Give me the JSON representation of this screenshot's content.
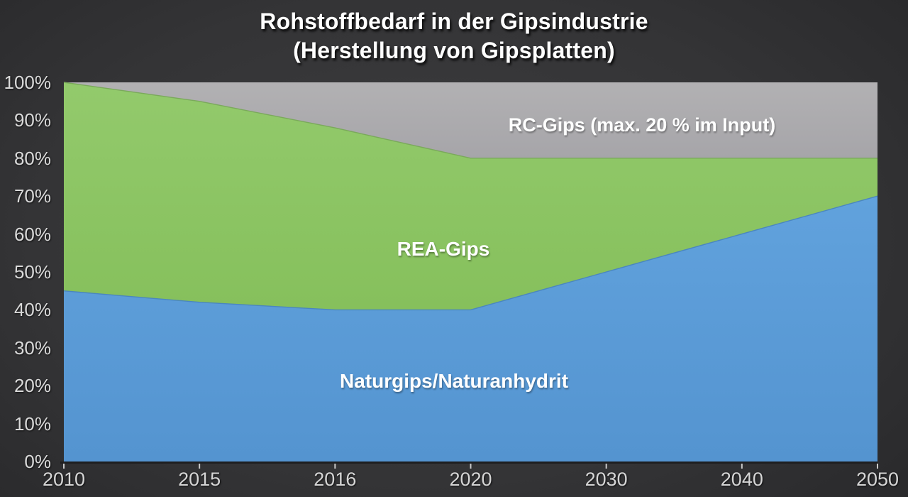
{
  "title": {
    "line1": "Rohstoffbedarf in der Gipsindustrie",
    "line2": "(Herstellung von Gipsplatten)"
  },
  "chart_data": {
    "type": "area",
    "stacked": true,
    "title": "Rohstoffbedarf in der Gipsindustrie (Herstellung von Gipsplatten)",
    "xlabel": "",
    "ylabel": "",
    "ylim": [
      0,
      100
    ],
    "unit": "%",
    "grid": "off",
    "legend": "labels drawn inside areas",
    "x_axis_type": "category (evenly spaced)",
    "categories": [
      "2010",
      "2015",
      "2016",
      "2020",
      "2030",
      "2040",
      "2050"
    ],
    "series": [
      {
        "name": "Naturgips/Naturanhydrit",
        "label": "Naturgips/Naturanhydrit",
        "values": [
          45,
          42,
          40,
          40,
          50,
          60,
          70
        ],
        "fill_top": "#61A2DD",
        "fill_bottom": "#5494D0",
        "edge": "#4A86BF"
      },
      {
        "name": "REA-Gips",
        "label": "REA-Gips",
        "values": [
          55,
          53,
          48,
          40,
          30,
          20,
          10
        ],
        "fill_top": "#93CA6C",
        "fill_bottom": "#86C05C",
        "edge": "#7AA95B"
      },
      {
        "name": "RC-Gips",
        "label": "RC-Gips (max. 20 % im Input)",
        "values": [
          0,
          5,
          12,
          20,
          20,
          20,
          20
        ],
        "fill_top": "#B2B1B3",
        "fill_bottom": "#A6A5A9",
        "edge": "#908F93"
      }
    ],
    "y_ticks": [
      "100%",
      "90%",
      "80%",
      "70%",
      "60%",
      "50%",
      "40%",
      "30%",
      "20%",
      "10%",
      "0%"
    ]
  },
  "axis": {
    "label_color": "#DADADA",
    "tick_color": "#C9C9C9",
    "axis_line_color": "#1E1E20"
  },
  "colors": {
    "background_center": "#3E3E40",
    "background_edge": "#262628",
    "title_color": "#FFFFFF",
    "area_label_color": "#FFFFFF"
  }
}
